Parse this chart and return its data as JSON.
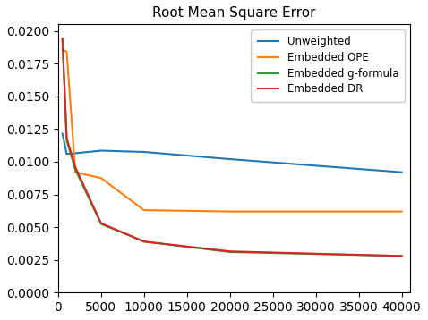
{
  "title": "Root Mean Square Error",
  "x": [
    500,
    1000,
    2000,
    5000,
    10000,
    20000,
    40000
  ],
  "unweighted": [
    0.01215,
    0.0106,
    0.01065,
    0.01085,
    0.01075,
    0.0102,
    0.0092
  ],
  "embedded_ope": [
    0.0186,
    0.0184,
    0.0092,
    0.00875,
    0.0063,
    0.0062,
    0.0062
  ],
  "embedded_gformula": [
    0.0194,
    0.0116,
    0.0094,
    0.00525,
    0.0039,
    0.0031,
    0.0028
  ],
  "embedded_dr": [
    0.0194,
    0.0118,
    0.0096,
    0.0053,
    0.0039,
    0.00315,
    0.0028
  ],
  "colors": {
    "unweighted": "#1f77b4",
    "embedded_ope": "#ff7f0e",
    "embedded_gformula": "#2ca02c",
    "embedded_dr": "#d62728"
  },
  "labels": {
    "unweighted": "Unweighted",
    "embedded_ope": "Embedded OPE",
    "embedded_gformula": "Embedded g-formula",
    "embedded_dr": "Embedded DR"
  },
  "ylim": [
    0.0,
    0.0205
  ],
  "xlim": [
    0,
    41000
  ],
  "yticks": [
    0.0,
    0.0025,
    0.005,
    0.0075,
    0.01,
    0.0125,
    0.015,
    0.0175,
    0.02
  ],
  "xticks": [
    0,
    5000,
    10000,
    15000,
    20000,
    25000,
    30000,
    35000,
    40000
  ]
}
